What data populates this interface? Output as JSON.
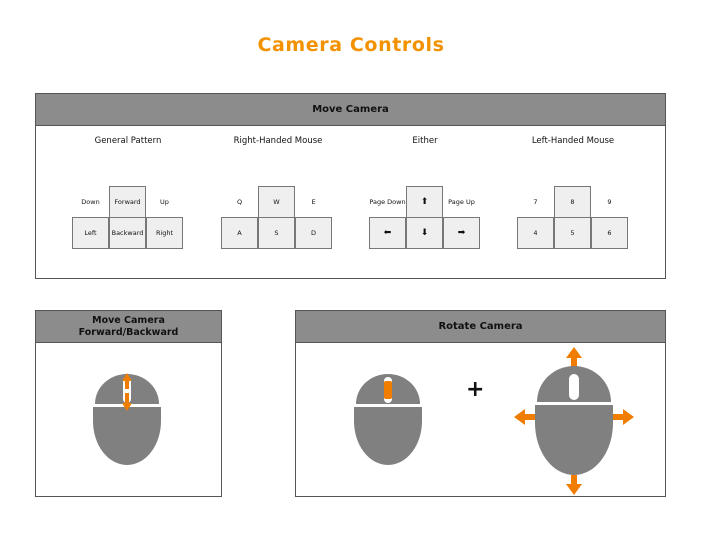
{
  "title": "Camera Controls",
  "accent_color": "#f39200",
  "move_camera": {
    "header": "Move Camera",
    "columns": [
      {
        "title": "General Pattern",
        "keys": {
          "up_left": "Down",
          "up_mid": "Forward",
          "up_right": "Up",
          "low_left": "Left",
          "low_mid": "Backward",
          "low_right": "Right"
        }
      },
      {
        "title": "Right-Handed Mouse",
        "keys": {
          "up_left": "Q",
          "up_mid": "W",
          "up_right": "E",
          "low_left": "A",
          "low_mid": "S",
          "low_right": "D"
        }
      },
      {
        "title": "Either",
        "keys": {
          "up_left": "Page Down",
          "up_mid": "⬆",
          "up_right": "Page Up",
          "low_left": "⬅",
          "low_mid": "⬇",
          "low_right": "➡"
        }
      },
      {
        "title": "Left-Handed Mouse",
        "keys": {
          "up_left": "7",
          "up_mid": "8",
          "up_right": "9",
          "low_left": "4",
          "low_mid": "5",
          "low_right": "6"
        }
      }
    ]
  },
  "forward_backward": {
    "header_line1": "Move Camera",
    "header_line2": "Forward/Backward",
    "icon": "mouse-scroll-wheel-icon"
  },
  "rotate_camera": {
    "header": "Rotate Camera",
    "plus": "+",
    "icons": [
      "mouse-middle-button-icon",
      "mouse-move-icon"
    ]
  }
}
